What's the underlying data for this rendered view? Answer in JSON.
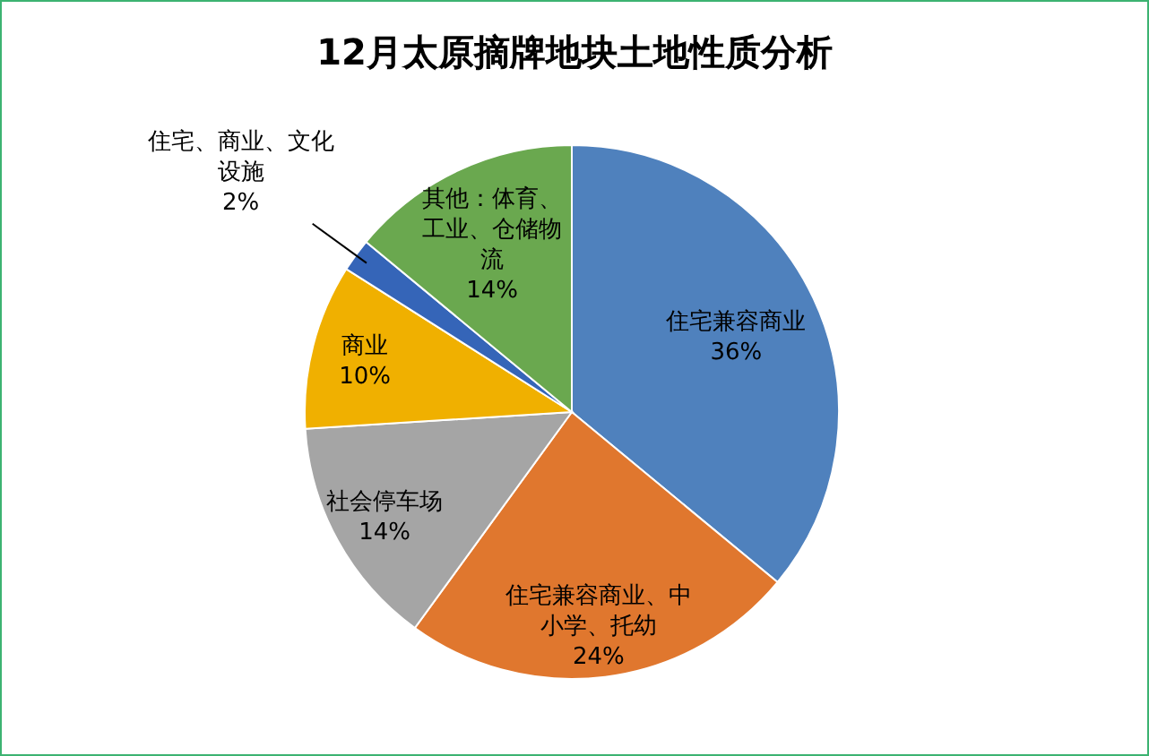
{
  "chart_data": {
    "type": "pie",
    "title": "12月太原摘牌地块土地性质分析",
    "categories": [
      "住宅兼容商业",
      "住宅兼容商业、中小学、托幼",
      "社会停车场",
      "商业",
      "住宅、商业、文化设施",
      "其他：体育、工业、仓储物流"
    ],
    "values": [
      36,
      24,
      14,
      10,
      2,
      14
    ],
    "colors": [
      "#4f81bd",
      "#e0772e",
      "#a5a5a5",
      "#f0b000",
      "#3565b8",
      "#6aa84f"
    ],
    "value_labels": [
      "36%",
      "24%",
      "14%",
      "10%",
      "2%",
      "14%"
    ]
  }
}
